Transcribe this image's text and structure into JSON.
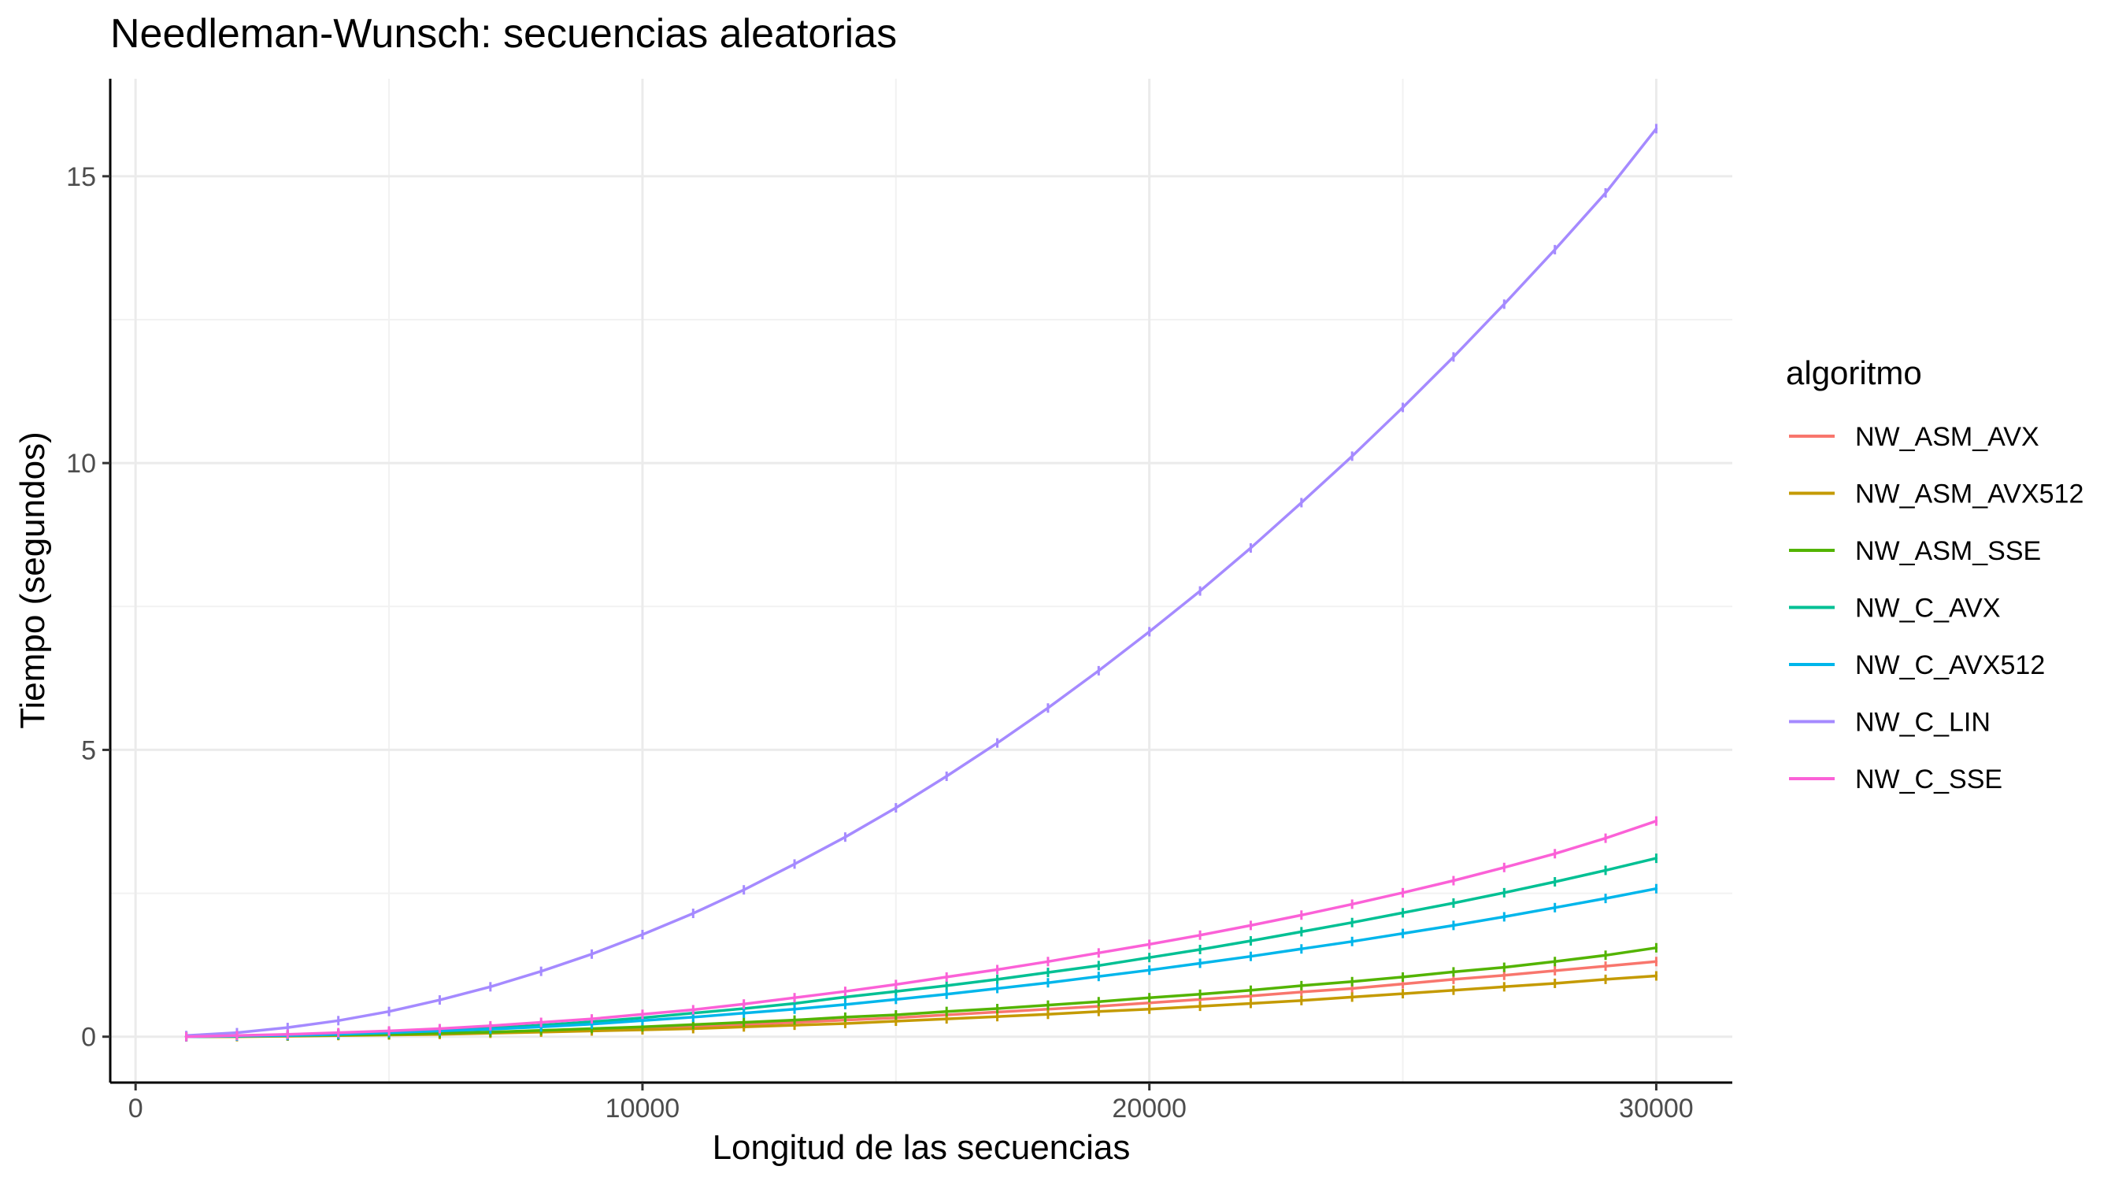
{
  "chart_data": {
    "type": "line",
    "title": "Needleman-Wunsch: secuencias aleatorias",
    "xlabel": "Longitud de las secuencias",
    "ylabel": "Tiempo (segundos)",
    "xlim": [
      -500,
      31500
    ],
    "ylim": [
      -0.8,
      16.7
    ],
    "x_ticks": [
      0,
      10000,
      20000,
      30000
    ],
    "x_tick_labels": [
      "0",
      "10000",
      "20000",
      "30000"
    ],
    "y_ticks": [
      0,
      5,
      10,
      15
    ],
    "y_tick_labels": [
      "0",
      "5",
      "10",
      "15"
    ],
    "x_minor": [
      5000,
      15000,
      25000
    ],
    "y_minor": [
      2.5,
      7.5,
      12.5
    ],
    "grid": true,
    "legend": {
      "title": "algoritmo",
      "position": "right"
    },
    "x": [
      1000,
      2000,
      3000,
      4000,
      5000,
      6000,
      7000,
      8000,
      9000,
      10000,
      11000,
      12000,
      13000,
      14000,
      15000,
      16000,
      17000,
      18000,
      19000,
      20000,
      21000,
      22000,
      23000,
      24000,
      25000,
      26000,
      27000,
      28000,
      29000,
      30000
    ],
    "series": [
      {
        "name": "NW_ASM_AVX",
        "color": "#F8766D",
        "values": [
          0.0,
          0.01,
          0.01,
          0.03,
          0.04,
          0.05,
          0.08,
          0.1,
          0.12,
          0.15,
          0.18,
          0.21,
          0.25,
          0.29,
          0.33,
          0.38,
          0.43,
          0.48,
          0.53,
          0.59,
          0.65,
          0.71,
          0.78,
          0.84,
          0.92,
          1.0,
          1.07,
          1.15,
          1.23,
          1.31
        ]
      },
      {
        "name": "NW_ASM_AVX512",
        "color": "#C49A00",
        "values": [
          0.0,
          0.0,
          0.01,
          0.02,
          0.03,
          0.04,
          0.06,
          0.08,
          0.1,
          0.12,
          0.14,
          0.17,
          0.2,
          0.23,
          0.27,
          0.31,
          0.35,
          0.39,
          0.44,
          0.48,
          0.53,
          0.58,
          0.63,
          0.69,
          0.75,
          0.81,
          0.87,
          0.93,
          1.0,
          1.06
        ]
      },
      {
        "name": "NW_ASM_SSE",
        "color": "#53B400",
        "values": [
          0.0,
          0.01,
          0.02,
          0.03,
          0.04,
          0.06,
          0.08,
          0.11,
          0.14,
          0.17,
          0.21,
          0.25,
          0.29,
          0.34,
          0.38,
          0.44,
          0.49,
          0.55,
          0.61,
          0.68,
          0.74,
          0.81,
          0.89,
          0.96,
          1.04,
          1.13,
          1.21,
          1.31,
          1.42,
          1.55
        ]
      },
      {
        "name": "NW_C_AVX",
        "color": "#00C094",
        "values": [
          0.0,
          0.01,
          0.03,
          0.05,
          0.08,
          0.11,
          0.15,
          0.2,
          0.26,
          0.33,
          0.41,
          0.49,
          0.58,
          0.69,
          0.79,
          0.89,
          1.0,
          1.12,
          1.24,
          1.38,
          1.52,
          1.67,
          1.83,
          1.99,
          2.16,
          2.33,
          2.51,
          2.7,
          2.9,
          3.11
        ]
      },
      {
        "name": "NW_C_AVX512",
        "color": "#00B6EB",
        "values": [
          0.0,
          0.01,
          0.02,
          0.04,
          0.07,
          0.1,
          0.13,
          0.17,
          0.22,
          0.28,
          0.34,
          0.41,
          0.48,
          0.56,
          0.65,
          0.74,
          0.84,
          0.94,
          1.05,
          1.16,
          1.28,
          1.4,
          1.53,
          1.66,
          1.8,
          1.94,
          2.09,
          2.25,
          2.41,
          2.58
        ]
      },
      {
        "name": "NW_C_LIN",
        "color": "#A58AFF",
        "values": [
          0.02,
          0.07,
          0.16,
          0.28,
          0.44,
          0.64,
          0.87,
          1.14,
          1.44,
          1.78,
          2.15,
          2.56,
          3.01,
          3.48,
          3.99,
          4.54,
          5.12,
          5.73,
          6.38,
          7.06,
          7.77,
          8.52,
          9.31,
          10.12,
          10.97,
          11.85,
          12.77,
          13.72,
          14.71,
          15.83
        ]
      },
      {
        "name": "NW_C_SSE",
        "color": "#FB61D7",
        "values": [
          0.0,
          0.02,
          0.04,
          0.07,
          0.1,
          0.14,
          0.19,
          0.25,
          0.31,
          0.39,
          0.47,
          0.57,
          0.68,
          0.79,
          0.91,
          1.04,
          1.17,
          1.31,
          1.46,
          1.61,
          1.77,
          1.94,
          2.12,
          2.31,
          2.51,
          2.72,
          2.95,
          3.19,
          3.46,
          3.76
        ]
      }
    ]
  }
}
